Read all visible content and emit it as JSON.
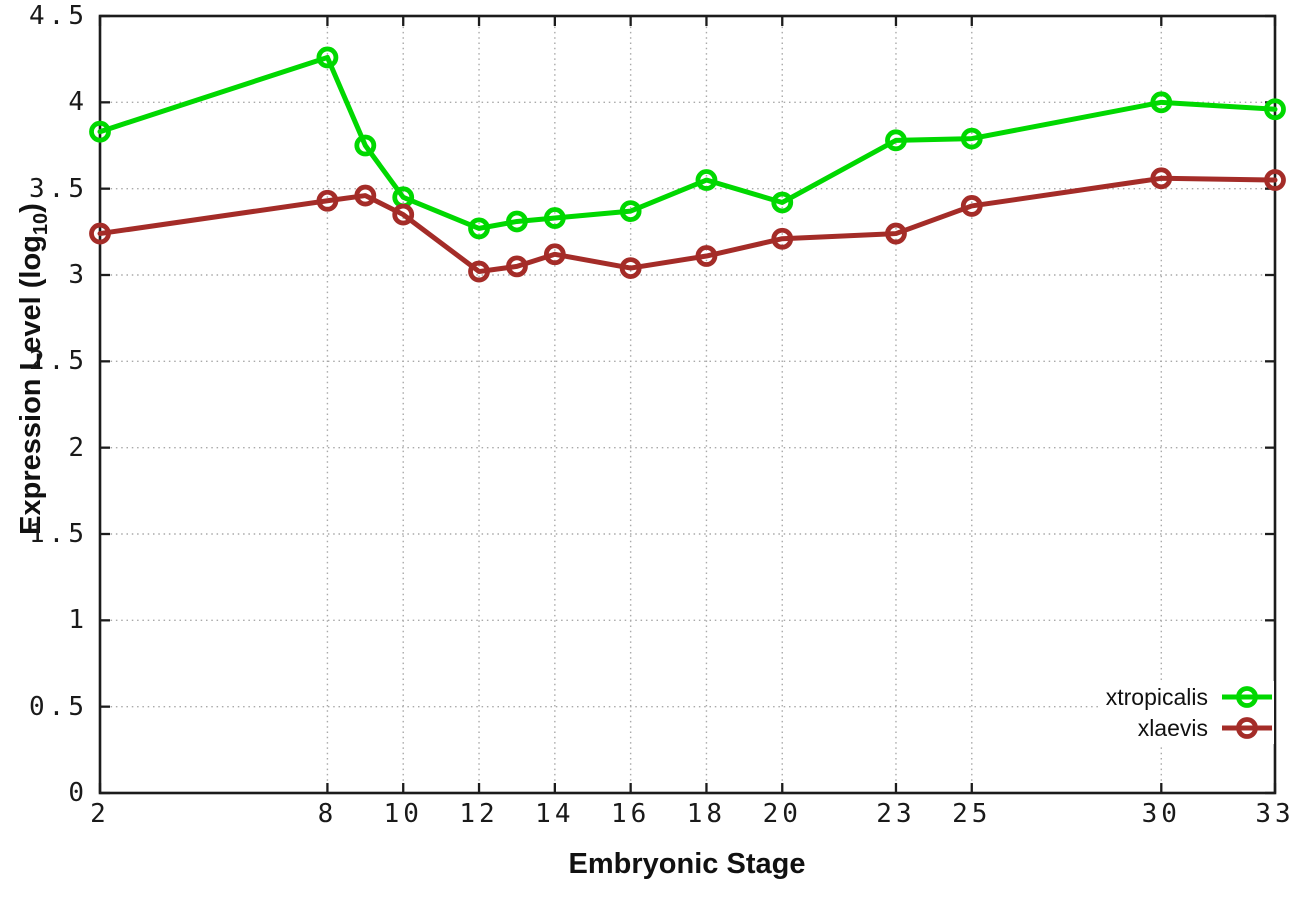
{
  "chart_data": {
    "type": "line",
    "title": "",
    "xlabel": "Embryonic Stage",
    "ylabel": "Expression Level (log10)",
    "ylabel_prefix": "Expression Level (log",
    "ylabel_subscript": "10",
    "ylabel_suffix": ")",
    "x": [
      2,
      8,
      9,
      10,
      12,
      13,
      14,
      16,
      18,
      20,
      23,
      25,
      30,
      33
    ],
    "x_ticks": [
      2,
      8,
      10,
      12,
      14,
      16,
      18,
      20,
      23,
      25,
      30,
      33
    ],
    "y_ticks": [
      "0",
      "0.5",
      "1",
      "1.5",
      "2",
      "2.5",
      "3",
      "3.5",
      "4",
      "4.5"
    ],
    "xlim": [
      2,
      33
    ],
    "ylim": [
      0,
      4.5
    ],
    "grid": true,
    "grid_style": "dotted",
    "legend_position": "inside-bottom-right",
    "background_color": "#ffffff",
    "axis_color": "#1c1c1c",
    "grid_color": "#a9a9a9",
    "series": [
      {
        "name": "xtropicalis",
        "color": "#00d800",
        "marker": "open-circle",
        "values": [
          3.83,
          4.26,
          3.75,
          3.45,
          3.27,
          3.31,
          3.33,
          3.37,
          3.55,
          3.42,
          3.78,
          3.79,
          4.0,
          3.96
        ]
      },
      {
        "name": "xlaevis",
        "color": "#a42c28",
        "marker": "open-circle",
        "values": [
          3.24,
          3.43,
          3.46,
          3.35,
          3.02,
          3.05,
          3.12,
          3.04,
          3.11,
          3.21,
          3.24,
          3.4,
          3.56,
          3.55
        ]
      }
    ]
  }
}
